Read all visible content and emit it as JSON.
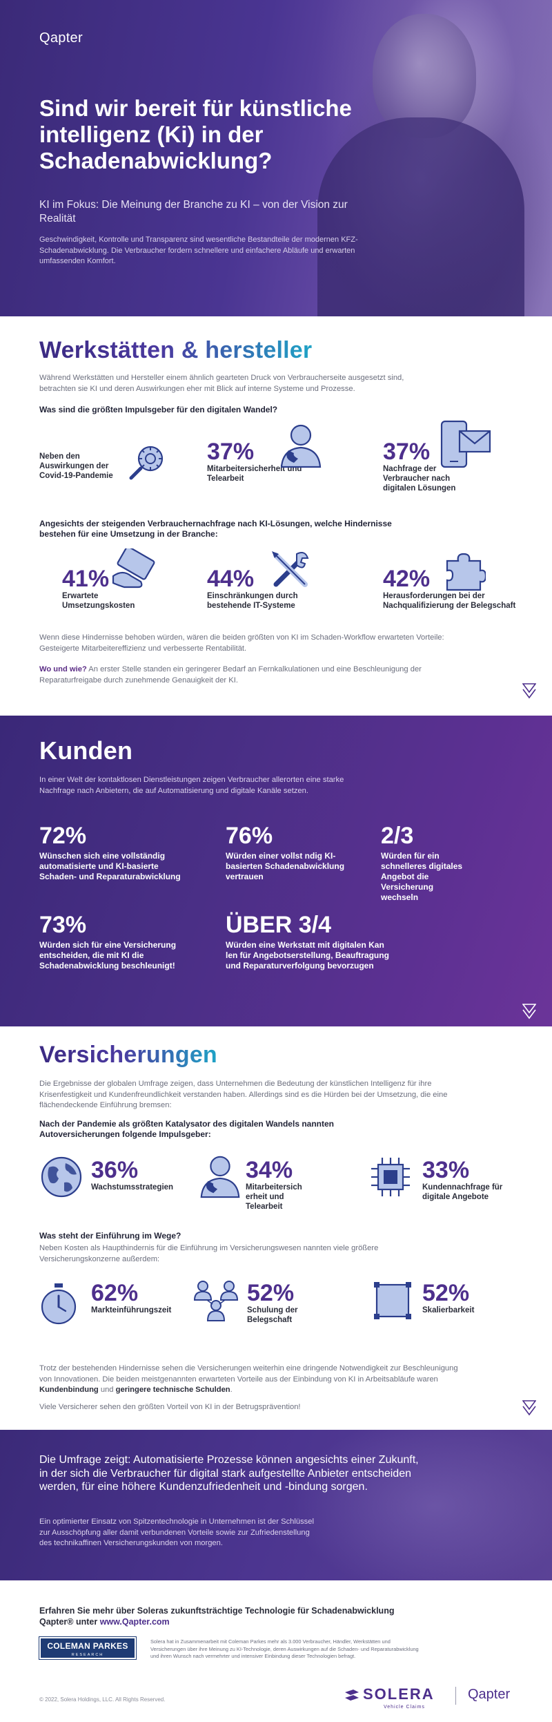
{
  "hero": {
    "logo": "Qapter",
    "title": "Sind wir bereit für künstliche intelligenz (Ki) in der Schadenabwicklung?",
    "subtitle": "KI im Fokus: Die Meinung der Branche zu KI – von der Vision zur Realität",
    "intro": "Geschwindigkeit, Kontrolle und Transparenz sind wesentliche Bestandteile der modernen KFZ-Schadenabwicklung. Die Verbraucher fordern schnellere und einfachere Abläufe und erwarten umfassenden Komfort."
  },
  "workshops": {
    "title": "Werkstätten & hersteller",
    "description": "Während Werkstätten und Hersteller einem ähnlich gearteten Druck von Verbraucherseite ausgesetzt sind, betrachten sie KI und deren Auswirkungen eher mit Blick auf interne Systeme und Prozesse.",
    "question1": "Was sind die größten Impulsgeber für den digitalen Wandel?",
    "drivers": [
      {
        "value": "",
        "label": "Neben den Auswirkungen der Covid-19-Pandemie",
        "icon": "virus-magnifier-icon"
      },
      {
        "value": "37%",
        "label": "Mitarbeitersicherheit und Telearbeit",
        "icon": "person-headset-icon"
      },
      {
        "value": "37%",
        "label": "Nachfrage der Verbraucher nach digitalen Lösungen",
        "icon": "phone-mail-icon"
      }
    ],
    "question2": "Angesichts der steigenden Verbrauchernachfrage nach KI-Lösungen, welche Hindernisse bestehen für eine Umsetzung in der Branche:",
    "barriers": [
      {
        "value": "41%",
        "label": "Erwartete Umsetzungskosten",
        "icon": "card-hand-icon"
      },
      {
        "value": "44%",
        "label": "Einschränkungen durch bestehende IT-Systeme",
        "icon": "tools-icon"
      },
      {
        "value": "42%",
        "label": "Herausforderungen bei der Nachqualifizierung der Belegschaft",
        "icon": "puzzle-icon"
      }
    ],
    "footnote1": "Wenn diese Hindernisse behoben würden, wären die beiden größten von KI im Schaden-Workflow erwarteten Vorteile: Gesteigerte Mitarbeitereffizienz und verbesserte Rentabilität.",
    "footnote2_lead": "Wo und wie?",
    "footnote2_text": " An erster Stelle standen ein geringerer Bedarf an Fernkalkulationen und eine Beschleunigung der Reparaturfreigabe durch zunehmende Genauigkeit der KI."
  },
  "customers": {
    "title": "Kunden",
    "description": "In einer Welt der kontaktlosen Dienstleistungen zeigen Verbraucher allerorten eine starke Nachfrage nach Anbietern, die auf Automatisierung und digitale Kanäle setzen.",
    "stats": [
      {
        "value": "72%",
        "label": "Wünschen sich eine vollständig automatisierte und KI-basierte Schaden- und Reparaturabwicklung"
      },
      {
        "value": "76%",
        "label": "Würden einer vollst ndig KI-basierten Schadenabwicklung vertrauen"
      },
      {
        "value": "2/3",
        "label": "Würden für ein schnelleres digitales Angebot die Versicherung wechseln"
      },
      {
        "value": "73%",
        "label": "Würden sich für eine Versicherung entscheiden, die mit KI die Schadenabwicklung beschleunigt!"
      },
      {
        "value": "ÜBER 3/4",
        "label": "Würden eine Werkstatt mit digitalen Kan len für Angebotserstellung, Beauftragung und Reparaturverfolgung bevorzugen"
      }
    ]
  },
  "insurers": {
    "title": "Versicherungen",
    "description": "Die Ergebnisse der globalen Umfrage zeigen, dass Unternehmen die Bedeutung der künstlichen Intelligenz für ihre Krisenfestigkeit und Kundenfreundlichkeit verstanden haben. Allerdings sind es die Hürden bei der Umsetzung, die eine flächendeckende Einführung bremsen:",
    "question1": "Nach der Pandemie als größten Katalysator des digitalen Wandels nannten Autoversicherungen folgende Impulsgeber:",
    "drivers": [
      {
        "value": "36%",
        "label": "Wachstumsstrategien",
        "icon": "globe-icon"
      },
      {
        "value": "34%",
        "label": "Mitarbeitersich erheit und Telearbeit",
        "icon": "person-headset-icon"
      },
      {
        "value": "33%",
        "label": "Kundennachfrage für digitale Angebote",
        "icon": "chip-icon"
      }
    ],
    "question2": "Was steht der Einführung im Wege?",
    "question2_desc": "Neben Kosten als Haupthindernis für die Einführung im Versicherungswesen nannten viele größere Versicherungskonzerne außerdem:",
    "barriers": [
      {
        "value": "62%",
        "label": "Markteinführungszeit",
        "icon": "stopwatch-icon"
      },
      {
        "value": "52%",
        "label": "Schulung der Belegschaft",
        "icon": "people-icon"
      },
      {
        "value": "52%",
        "label": "Skalierbarkeit",
        "icon": "scale-square-icon"
      }
    ],
    "footnote1_a": "Trotz der bestehenden Hindernisse sehen die Versicherungen weiterhin eine dringende Notwendigkeit zur Beschleunigung von Innovationen. Die beiden meistgenannten erwarteten Vorteile aus der Einbindung von KI in Arbeitsabläufe waren ",
    "footnote1_b1": "Kundenbindung",
    "footnote1_and": " und ",
    "footnote1_b2": "geringere technische Schulden",
    "footnote1_end": ".",
    "footnote2": "Viele Versicherer sehen den größten Vorteil von KI in der Betrugsprävention!"
  },
  "conclusion": {
    "headline": "Die Umfrage zeigt: Automatisierte Prozesse können angesichts einer Zukunft, in der sich die Verbraucher für digital stark aufgestellte Anbieter entscheiden werden, für eine höhere Kundenzufriedenheit und -bindung sorgen.",
    "text": "Ein optimierter Einsatz von Spitzentechnologie in Unternehmen ist der Schlüssel zur Ausschöpfung aller damit verbundenen Vorteile sowie zur Zufriedenstellung des technikaffinen Versicherungskunden von morgen."
  },
  "footer": {
    "cta_text": "Erfahren Sie mehr über Soleras zukunftsträchtige Technologie für Schadenabwicklung Qapter® unter ",
    "cta_url": "www.Qapter.com",
    "partner_name": "COLEMAN PARKES",
    "partner_sub": "RESEARCH",
    "note": "Solera hat in Zusammenarbeit mit Coleman Parkes mehr als 3.000 Verbraucher, Händler, Werkstätten und Versicherungen über ihre Meinung zu KI-Technologie, deren Auswirkungen auf die Schaden- und Reparaturabwicklung und ihren Wunsch nach vermehrter und intensiver Einbindung dieser Technologien befragt.",
    "copyright": "© 2022, Solera Holdings, LLC. All Rights Reserved.",
    "brand1": "SOLERA",
    "brand1_sub": "Vehicle Claims",
    "brand2": "Qapter"
  },
  "colors": {
    "purple": "#4d2f8c",
    "dark_band": "#3a2878",
    "teal_accent": "#1fa3c6",
    "icon_fill": "#b7c6ea",
    "icon_stroke": "#2c3e8c"
  }
}
